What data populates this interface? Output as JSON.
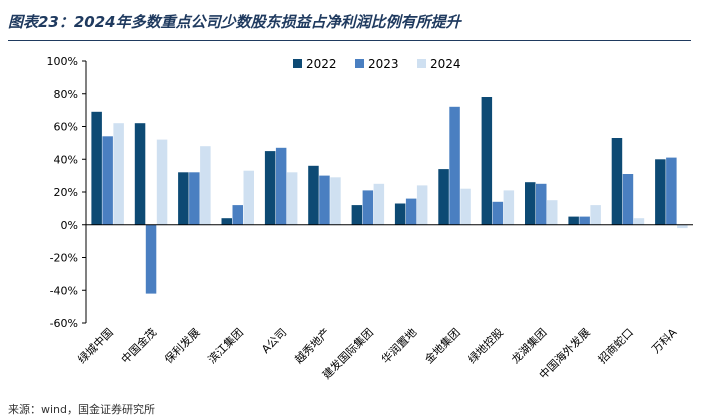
{
  "title": "图表23：2024年多数重点公司少数股东损益占净利润比例有所提升",
  "source": "来源：wind，国金证券研究所",
  "chart_data": {
    "type": "bar",
    "categories": [
      "绿城中国",
      "中国金茂",
      "保利发展",
      "滨江集团",
      "A公司",
      "越秀地产",
      "建发国际集团",
      "华润置地",
      "金地集团",
      "绿地控股",
      "龙湖集团",
      "中国海外发展",
      "招商蛇口",
      "万科A"
    ],
    "series": [
      {
        "name": "2022",
        "color": "#0d4a74",
        "values": [
          69,
          62,
          32,
          4,
          45,
          36,
          12,
          13,
          34,
          78,
          26,
          5,
          53,
          40
        ]
      },
      {
        "name": "2023",
        "color": "#4a7fc1",
        "values": [
          54,
          -42,
          32,
          12,
          47,
          30,
          21,
          16,
          72,
          14,
          25,
          5,
          31,
          41
        ]
      },
      {
        "name": "2024",
        "color": "#cfe0f1",
        "values": [
          62,
          52,
          48,
          33,
          32,
          29,
          25,
          24,
          22,
          21,
          15,
          12,
          4,
          -2
        ]
      }
    ],
    "yticks": [
      "100%",
      "80%",
      "60%",
      "40%",
      "20%",
      "0%",
      "-20%",
      "-40%",
      "-60%"
    ],
    "ylim": [
      -60,
      100
    ],
    "legend_position": "top-center",
    "grid": false
  }
}
